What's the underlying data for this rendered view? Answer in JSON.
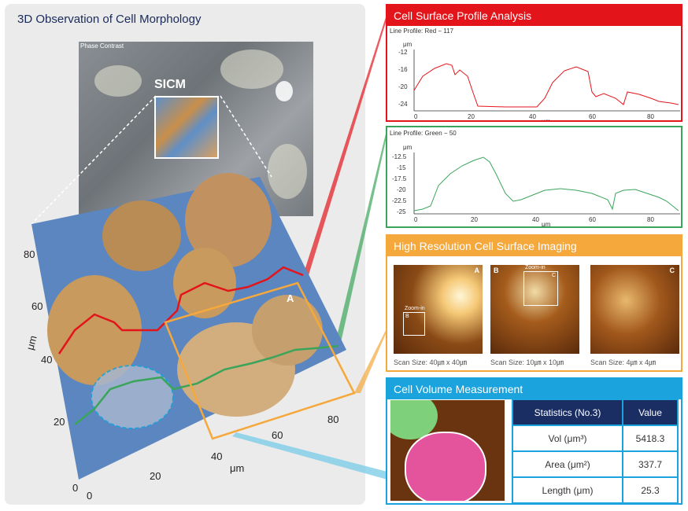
{
  "left": {
    "title": "3D Observation of Cell Morphology",
    "phase_label": "Phase Contrast",
    "sicm_label": "SICM",
    "region_label": "A",
    "axis_um": "μm",
    "y_ticks": [
      "80",
      "60",
      "40",
      "20",
      "0"
    ],
    "x_ticks": [
      "0",
      "20",
      "40",
      "60",
      "80"
    ]
  },
  "red_panel": {
    "title": "Cell Surface Profile Analysis",
    "profile_label": "Line Profile: Red  −  117",
    "y_unit": "μm",
    "x_unit": "μm",
    "y_ticks": [
      "-12",
      "-16",
      "-20",
      "-24"
    ],
    "x_ticks": [
      "0",
      "20",
      "40",
      "60",
      "80"
    ],
    "color": "#e3151b"
  },
  "green_panel": {
    "profile_label": "Line Profile: Green  −  50",
    "y_unit": "μm",
    "x_unit": "μm",
    "y_ticks": [
      "-12.5",
      "-15",
      "-17.5",
      "-20",
      "-22.5",
      "-25"
    ],
    "x_ticks": [
      "0",
      "20",
      "40",
      "60",
      "80"
    ],
    "color": "#3aa55a"
  },
  "orange_panel": {
    "title": "High Resolution Cell Surface Imaging",
    "images": [
      {
        "letter": "A",
        "zoom_label": "Zoom-in",
        "zoom_letter": "B",
        "scan": "Scan Size: 40㎛ x 40㎛"
      },
      {
        "letter": "B",
        "zoom_label": "Zoom-in",
        "zoom_letter": "C",
        "scan": "Scan Size: 10㎛ x 10㎛"
      },
      {
        "letter": "C",
        "zoom_label": "",
        "zoom_letter": "",
        "scan": "Scan Size: 4㎛ x 4㎛"
      }
    ]
  },
  "blue_panel": {
    "title": "Cell Volume Measurement",
    "header": [
      "Statistics (No.3)",
      "Value"
    ],
    "rows": [
      {
        "label": "Vol (μm³)",
        "value": "5418.3"
      },
      {
        "label": "Area (μm²)",
        "value": "337.7"
      },
      {
        "label": "Length (μm)",
        "value": "25.3"
      }
    ]
  }
}
